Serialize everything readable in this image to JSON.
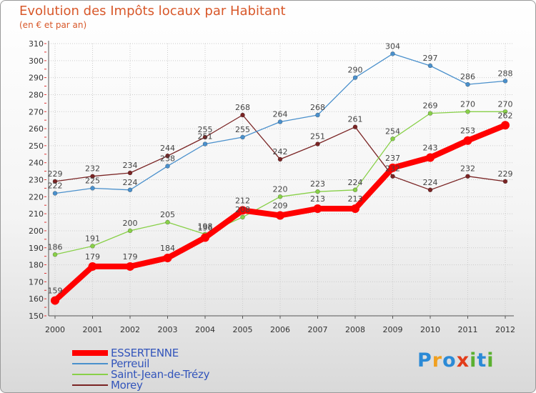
{
  "header": {
    "title": "Evolution des Impôts locaux par Habitant",
    "subtitle": "(en € et par an)"
  },
  "colors": {
    "title": "#d8582a",
    "axis": "#555555",
    "grid": "#cccccc",
    "legend_text": "#3355bb"
  },
  "chart_data": {
    "type": "line",
    "title": "Evolution des Impôts locaux par Habitant",
    "subtitle": "(en € et par an)",
    "xlabel": "",
    "ylabel": "",
    "ylim": [
      150,
      310
    ],
    "yticks": [
      150,
      160,
      170,
      180,
      190,
      200,
      210,
      220,
      230,
      240,
      250,
      260,
      270,
      280,
      290,
      300,
      310
    ],
    "grid": true,
    "legend_position": "bottom-left",
    "categories": [
      "2000",
      "2001",
      "2002",
      "2003",
      "2004",
      "2005",
      "2006",
      "2007",
      "2008",
      "2009",
      "2010",
      "2011",
      "2012"
    ],
    "series": [
      {
        "name": "Morey",
        "color": "#7a2424",
        "values": [
          229,
          232,
          234,
          244,
          255,
          268,
          242,
          251,
          261,
          232,
          224,
          232,
          229
        ]
      },
      {
        "name": "Perreuil",
        "color": "#4a90cc",
        "values": [
          222,
          225,
          224,
          238,
          251,
          255,
          264,
          268,
          290,
          304,
          297,
          286,
          288
        ]
      },
      {
        "name": "Saint-Jean-de-Trézy",
        "color": "#88d048",
        "values": [
          186,
          191,
          200,
          205,
          198,
          208,
          220,
          223,
          224,
          254,
          269,
          270,
          270
        ]
      },
      {
        "name": "ESSERTENNE",
        "color": "#ff0000",
        "values": [
          159,
          179,
          179,
          184,
          196,
          212,
          209,
          213,
          213,
          237,
          243,
          253,
          262
        ]
      }
    ]
  },
  "legend": [
    {
      "name": "ESSERTENNE",
      "color": "#ff0000",
      "weight": "thick"
    },
    {
      "name": "Perreuil",
      "color": "#4a90cc",
      "weight": "thin"
    },
    {
      "name": "Saint-Jean-de-Trézy",
      "color": "#88d048",
      "weight": "thin"
    },
    {
      "name": "Morey",
      "color": "#7a2424",
      "weight": "thin"
    }
  ],
  "logo": {
    "text": "Proxiti",
    "letters": [
      "P",
      "r",
      "o",
      "x",
      "i",
      "t",
      "i"
    ],
    "letter_colors": [
      "#2b8ad6",
      "#f0a020",
      "#2b8ad6",
      "#e23c1a",
      "#5bb030",
      "#2b8ad6",
      "#5bb030"
    ]
  }
}
